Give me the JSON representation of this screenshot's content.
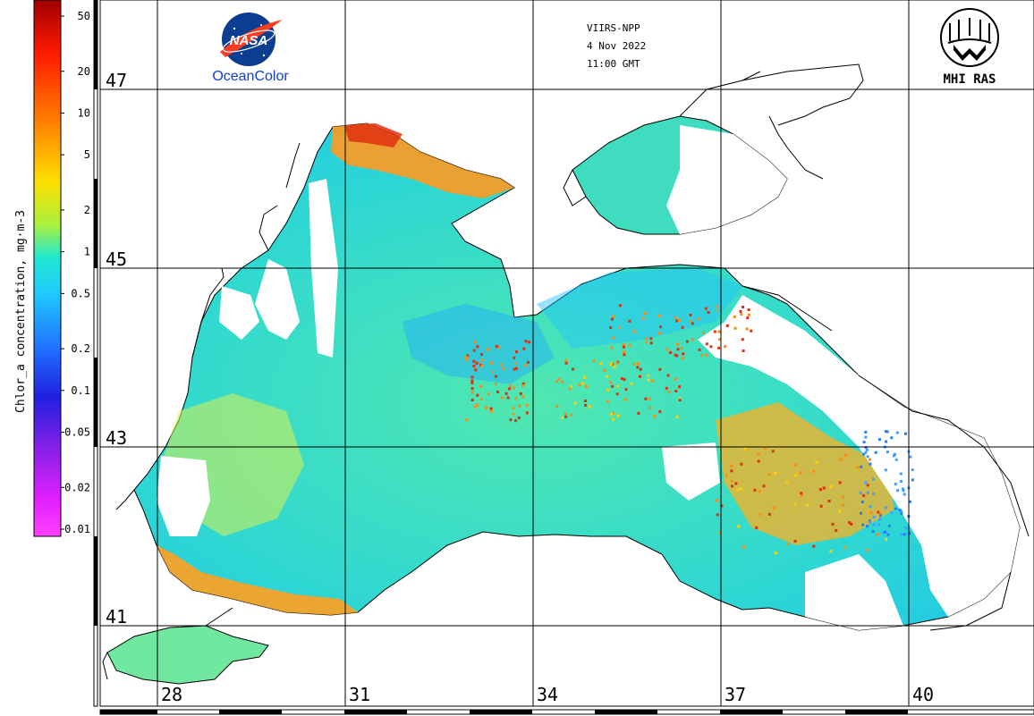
{
  "header": {
    "satellite": "VIIRS-NPP",
    "date": "4 Nov 2022",
    "time": "11:00 GMT"
  },
  "logos": {
    "nasa_text": "NASA",
    "oceancolor_text": "OceanColor",
    "mhi_text": "MHI RAS"
  },
  "colorbar": {
    "label": "Chlor_a concentration, mg·m-3",
    "ticks": [
      "50",
      "20",
      "10",
      "5",
      "2",
      "1",
      "0.5",
      "0.2",
      "0.1",
      "0.05",
      "0.02",
      "0.01"
    ],
    "tick_values": [
      50,
      20,
      10,
      5,
      2,
      1,
      0.5,
      0.2,
      0.1,
      0.05,
      0.02,
      0.01
    ],
    "colors": [
      "#b00000",
      "#ff2000",
      "#ff8000",
      "#ffd800",
      "#b0f040",
      "#20e8d8",
      "#20c8ff",
      "#2070ff",
      "#2020e0",
      "#8020e0",
      "#e020ff",
      "#ff50ff"
    ]
  },
  "map": {
    "latitude_labels": [
      "47",
      "45",
      "43",
      "41"
    ],
    "latitudes": [
      47,
      45,
      43,
      41
    ],
    "longitude_labels": [
      "28",
      "31",
      "34",
      "37",
      "40"
    ],
    "longitudes": [
      28,
      31,
      34,
      37,
      40
    ]
  }
}
